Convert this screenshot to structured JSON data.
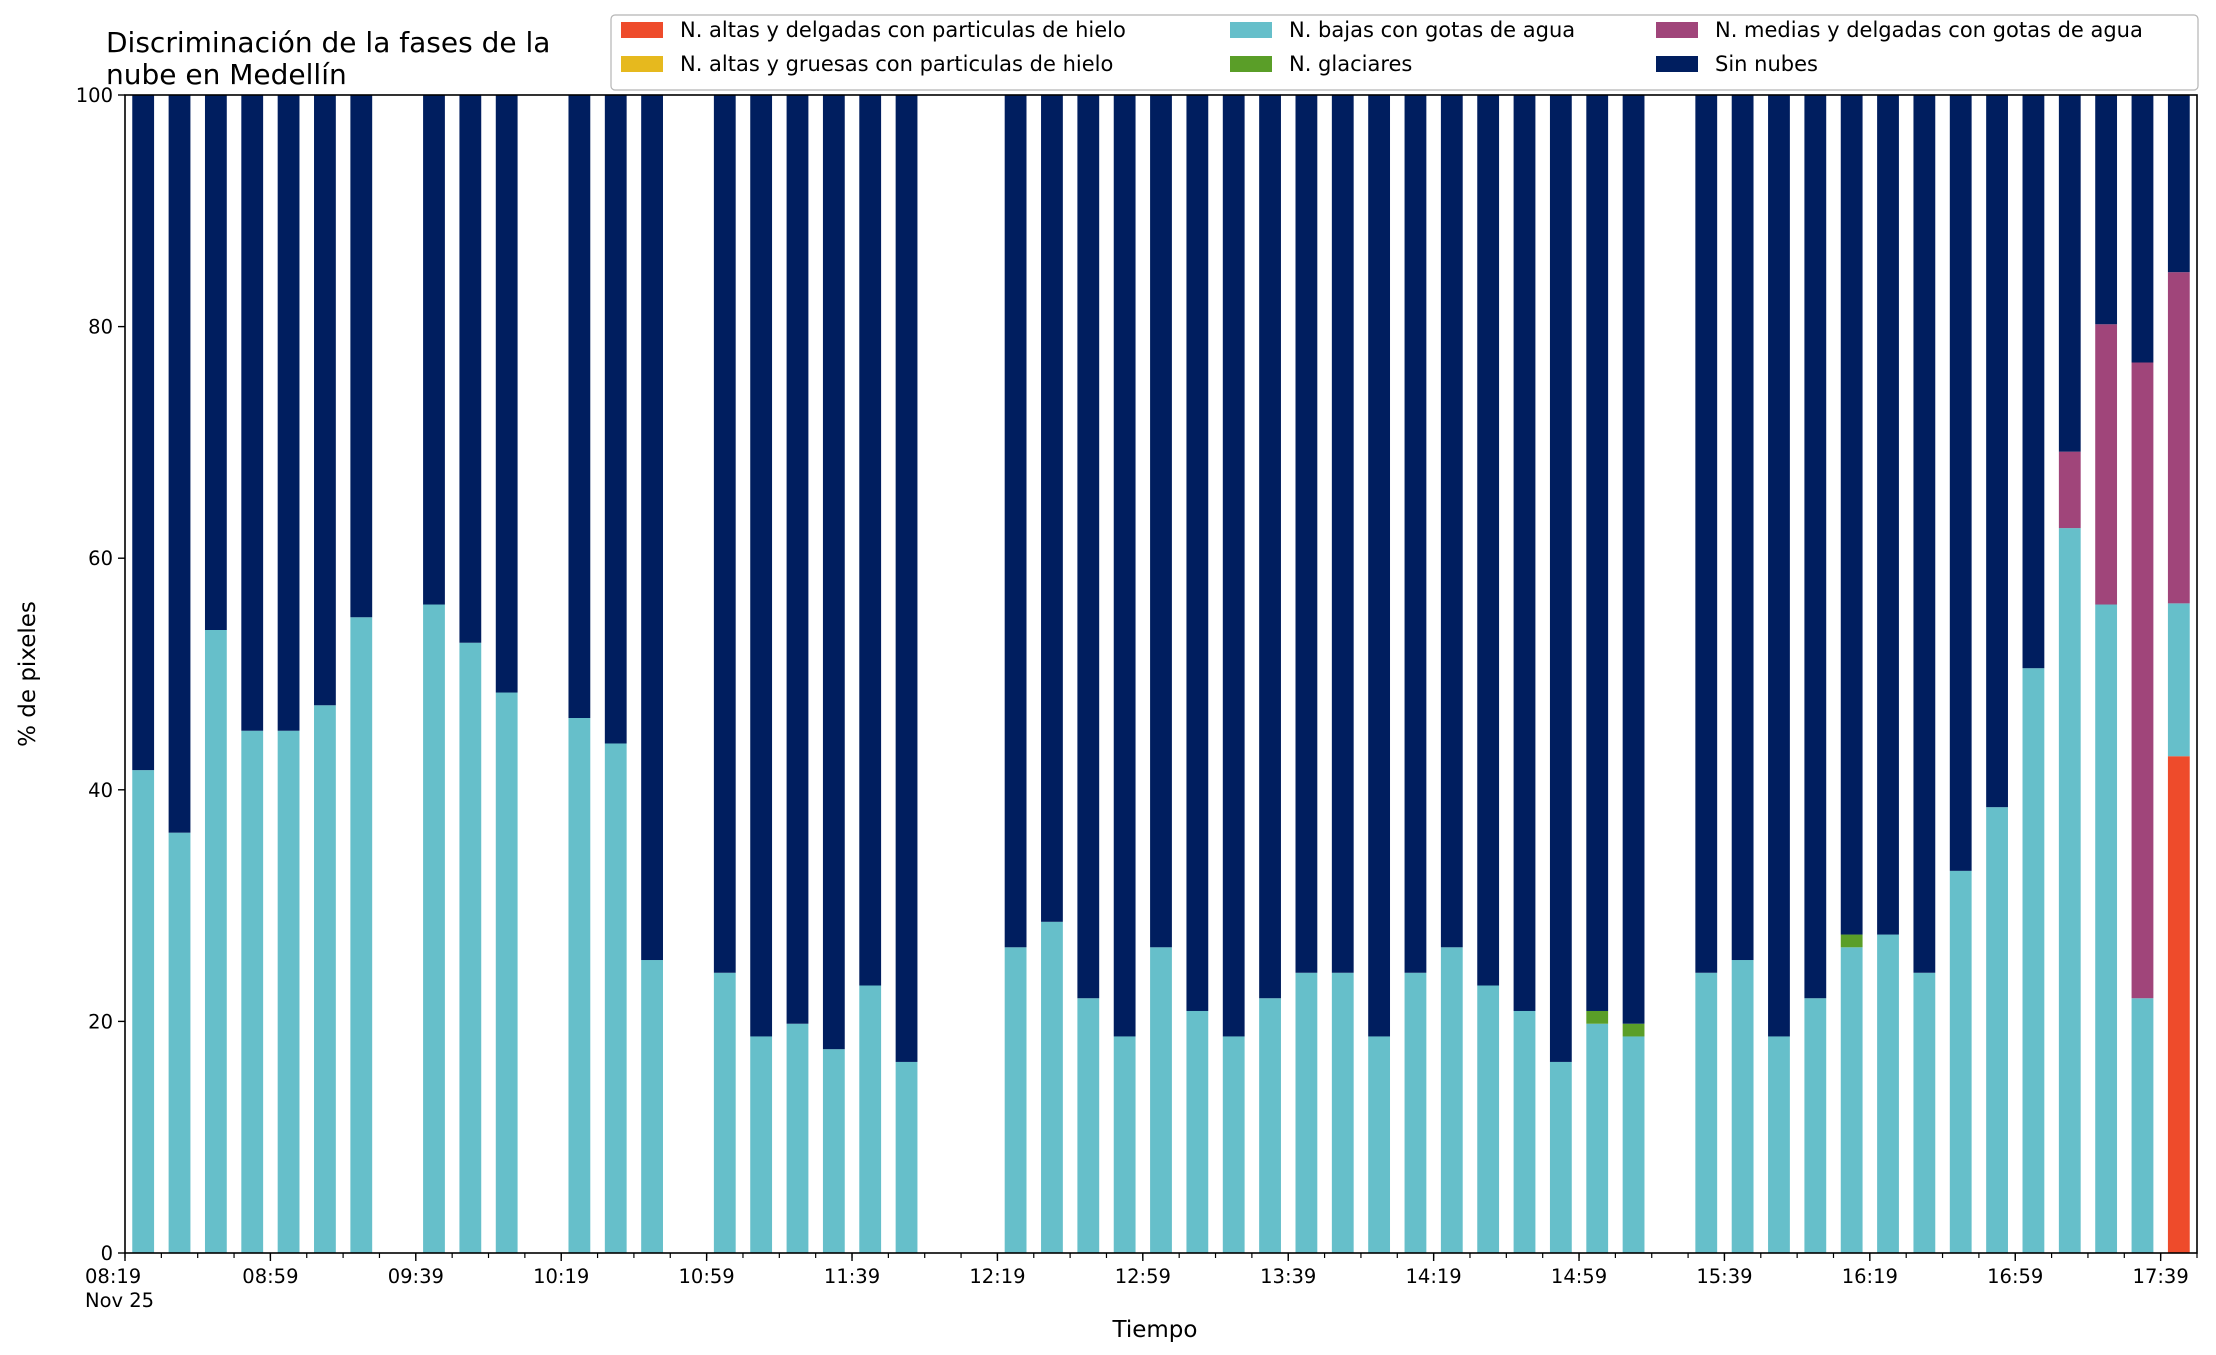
{
  "chart_data": {
    "type": "bar",
    "stacked": true,
    "title_lines": [
      "Discriminación de la fases de la",
      "nube en Medellín"
    ],
    "xlabel": "Tiempo",
    "ylabel": "% de pixeles",
    "ylim": [
      0,
      100
    ],
    "yticks": [
      0,
      20,
      40,
      60,
      80,
      100
    ],
    "x_range": [
      "08:19",
      "17:49"
    ],
    "x_interval_minutes": 10,
    "xtick_labels": [
      {
        "time": "08:19",
        "text": "08:19",
        "sub": "Nov 25"
      },
      {
        "time": "08:59",
        "text": "08:59"
      },
      {
        "time": "09:39",
        "text": "09:39"
      },
      {
        "time": "10:19",
        "text": "10:19"
      },
      {
        "time": "10:59",
        "text": "10:59"
      },
      {
        "time": "11:39",
        "text": "11:39"
      },
      {
        "time": "12:19",
        "text": "12:19"
      },
      {
        "time": "12:59",
        "text": "12:59"
      },
      {
        "time": "13:39",
        "text": "13:39"
      },
      {
        "time": "14:19",
        "text": "14:19"
      },
      {
        "time": "14:59",
        "text": "14:59"
      },
      {
        "time": "15:39",
        "text": "15:39"
      },
      {
        "time": "16:19",
        "text": "16:19"
      },
      {
        "time": "16:59",
        "text": "16:59"
      },
      {
        "time": "17:39",
        "text": "17:39"
      }
    ],
    "legend_position": "top-right",
    "series": [
      {
        "key": "alta_delgada",
        "name": "N. altas y delgadas con particulas de hielo",
        "color": "#ee4b2b"
      },
      {
        "key": "alta_gruesa",
        "name": "N. altas y gruesas con particulas de hielo",
        "color": "#e6b91e"
      },
      {
        "key": "baja",
        "name": "N. bajas con gotas de agua",
        "color": "#66bfca"
      },
      {
        "key": "glaciar",
        "name": "N. glaciares",
        "color": "#5a9e28"
      },
      {
        "key": "media",
        "name": "N. medias y delgadas con gotas de agua",
        "color": "#a0457a"
      },
      {
        "key": "sin",
        "name": "Sin nubes",
        "color": "#001e5f"
      }
    ],
    "legend_order": [
      "alta_delgada",
      "alta_gruesa",
      "baja",
      "glaciar",
      "media",
      "sin"
    ],
    "data": [
      {
        "time": "08:24",
        "alta_delgada": 0,
        "alta_gruesa": 0,
        "baja": 41.7,
        "glaciar": 0,
        "media": 0,
        "sin": 58.3
      },
      {
        "time": "08:34",
        "alta_delgada": 0,
        "alta_gruesa": 0,
        "baja": 36.3,
        "glaciar": 0,
        "media": 0,
        "sin": 63.7
      },
      {
        "time": "08:44",
        "alta_delgada": 0,
        "alta_gruesa": 0,
        "baja": 53.8,
        "glaciar": 0,
        "media": 0,
        "sin": 46.2
      },
      {
        "time": "08:54",
        "alta_delgada": 0,
        "alta_gruesa": 0,
        "baja": 45.1,
        "glaciar": 0,
        "media": 0,
        "sin": 54.9
      },
      {
        "time": "09:04",
        "alta_delgada": 0,
        "alta_gruesa": 0,
        "baja": 45.1,
        "glaciar": 0,
        "media": 0,
        "sin": 54.9
      },
      {
        "time": "09:14",
        "alta_delgada": 0,
        "alta_gruesa": 0,
        "baja": 47.3,
        "glaciar": 0,
        "media": 0,
        "sin": 52.7
      },
      {
        "time": "09:24",
        "alta_delgada": 0,
        "alta_gruesa": 0,
        "baja": 54.9,
        "glaciar": 0,
        "media": 0,
        "sin": 45.1
      },
      {
        "time": "09:44",
        "alta_delgada": 0,
        "alta_gruesa": 0,
        "baja": 56.0,
        "glaciar": 0,
        "media": 0,
        "sin": 44.0
      },
      {
        "time": "09:54",
        "alta_delgada": 0,
        "alta_gruesa": 0,
        "baja": 52.7,
        "glaciar": 0,
        "media": 0,
        "sin": 47.3
      },
      {
        "time": "10:04",
        "alta_delgada": 0,
        "alta_gruesa": 0,
        "baja": 48.4,
        "glaciar": 0,
        "media": 0,
        "sin": 51.6
      },
      {
        "time": "10:24",
        "alta_delgada": 0,
        "alta_gruesa": 0,
        "baja": 46.2,
        "glaciar": 0,
        "media": 0,
        "sin": 53.8
      },
      {
        "time": "10:34",
        "alta_delgada": 0,
        "alta_gruesa": 0,
        "baja": 44.0,
        "glaciar": 0,
        "media": 0,
        "sin": 56.0
      },
      {
        "time": "10:44",
        "alta_delgada": 0,
        "alta_gruesa": 0,
        "baja": 25.3,
        "glaciar": 0,
        "media": 0,
        "sin": 74.7
      },
      {
        "time": "11:04",
        "alta_delgada": 0,
        "alta_gruesa": 0,
        "baja": 24.2,
        "glaciar": 0,
        "media": 0,
        "sin": 75.8
      },
      {
        "time": "11:14",
        "alta_delgada": 0,
        "alta_gruesa": 0,
        "baja": 18.7,
        "glaciar": 0,
        "media": 0,
        "sin": 81.3
      },
      {
        "time": "11:24",
        "alta_delgada": 0,
        "alta_gruesa": 0,
        "baja": 19.8,
        "glaciar": 0,
        "media": 0,
        "sin": 80.2
      },
      {
        "time": "11:34",
        "alta_delgada": 0,
        "alta_gruesa": 0,
        "baja": 17.6,
        "glaciar": 0,
        "media": 0,
        "sin": 82.4
      },
      {
        "time": "11:44",
        "alta_delgada": 0,
        "alta_gruesa": 0,
        "baja": 23.1,
        "glaciar": 0,
        "media": 0,
        "sin": 76.9
      },
      {
        "time": "11:54",
        "alta_delgada": 0,
        "alta_gruesa": 0,
        "baja": 16.5,
        "glaciar": 0,
        "media": 0,
        "sin": 83.5
      },
      {
        "time": "12:24",
        "alta_delgada": 0,
        "alta_gruesa": 0,
        "baja": 26.4,
        "glaciar": 0,
        "media": 0,
        "sin": 73.6
      },
      {
        "time": "12:34",
        "alta_delgada": 0,
        "alta_gruesa": 0,
        "baja": 28.6,
        "glaciar": 0,
        "media": 0,
        "sin": 71.4
      },
      {
        "time": "12:44",
        "alta_delgada": 0,
        "alta_gruesa": 0,
        "baja": 22.0,
        "glaciar": 0,
        "media": 0,
        "sin": 78.0
      },
      {
        "time": "12:54",
        "alta_delgada": 0,
        "alta_gruesa": 0,
        "baja": 18.7,
        "glaciar": 0,
        "media": 0,
        "sin": 81.3
      },
      {
        "time": "13:04",
        "alta_delgada": 0,
        "alta_gruesa": 0,
        "baja": 26.4,
        "glaciar": 0,
        "media": 0,
        "sin": 73.6
      },
      {
        "time": "13:14",
        "alta_delgada": 0,
        "alta_gruesa": 0,
        "baja": 20.9,
        "glaciar": 0,
        "media": 0,
        "sin": 79.1
      },
      {
        "time": "13:24",
        "alta_delgada": 0,
        "alta_gruesa": 0,
        "baja": 18.7,
        "glaciar": 0,
        "media": 0,
        "sin": 81.3
      },
      {
        "time": "13:34",
        "alta_delgada": 0,
        "alta_gruesa": 0,
        "baja": 22.0,
        "glaciar": 0,
        "media": 0,
        "sin": 78.0
      },
      {
        "time": "13:44",
        "alta_delgada": 0,
        "alta_gruesa": 0,
        "baja": 24.2,
        "glaciar": 0,
        "media": 0,
        "sin": 75.8
      },
      {
        "time": "13:54",
        "alta_delgada": 0,
        "alta_gruesa": 0,
        "baja": 24.2,
        "glaciar": 0,
        "media": 0,
        "sin": 75.8
      },
      {
        "time": "14:04",
        "alta_delgada": 0,
        "alta_gruesa": 0,
        "baja": 18.7,
        "glaciar": 0,
        "media": 0,
        "sin": 81.3
      },
      {
        "time": "14:14",
        "alta_delgada": 0,
        "alta_gruesa": 0,
        "baja": 24.2,
        "glaciar": 0,
        "media": 0,
        "sin": 75.8
      },
      {
        "time": "14:24",
        "alta_delgada": 0,
        "alta_gruesa": 0,
        "baja": 26.4,
        "glaciar": 0,
        "media": 0,
        "sin": 73.6
      },
      {
        "time": "14:34",
        "alta_delgada": 0,
        "alta_gruesa": 0,
        "baja": 23.1,
        "glaciar": 0,
        "media": 0,
        "sin": 76.9
      },
      {
        "time": "14:44",
        "alta_delgada": 0,
        "alta_gruesa": 0,
        "baja": 20.9,
        "glaciar": 0,
        "media": 0,
        "sin": 79.1
      },
      {
        "time": "14:54",
        "alta_delgada": 0,
        "alta_gruesa": 0,
        "baja": 16.5,
        "glaciar": 0,
        "media": 0,
        "sin": 83.5
      },
      {
        "time": "15:04",
        "alta_delgada": 0,
        "alta_gruesa": 0,
        "baja": 19.8,
        "glaciar": 1.1,
        "media": 0,
        "sin": 79.1
      },
      {
        "time": "15:14",
        "alta_delgada": 0,
        "alta_gruesa": 0,
        "baja": 18.7,
        "glaciar": 1.1,
        "media": 0,
        "sin": 80.2
      },
      {
        "time": "15:34",
        "alta_delgada": 0,
        "alta_gruesa": 0,
        "baja": 24.2,
        "glaciar": 0,
        "media": 0,
        "sin": 75.8
      },
      {
        "time": "15:44",
        "alta_delgada": 0,
        "alta_gruesa": 0,
        "baja": 25.3,
        "glaciar": 0,
        "media": 0,
        "sin": 74.7
      },
      {
        "time": "15:54",
        "alta_delgada": 0,
        "alta_gruesa": 0,
        "baja": 18.7,
        "glaciar": 0,
        "media": 0,
        "sin": 81.3
      },
      {
        "time": "16:04",
        "alta_delgada": 0,
        "alta_gruesa": 0,
        "baja": 22.0,
        "glaciar": 0,
        "media": 0,
        "sin": 78.0
      },
      {
        "time": "16:14",
        "alta_delgada": 0,
        "alta_gruesa": 0,
        "baja": 26.4,
        "glaciar": 1.1,
        "media": 0,
        "sin": 72.5
      },
      {
        "time": "16:24",
        "alta_delgada": 0,
        "alta_gruesa": 0,
        "baja": 27.5,
        "glaciar": 0,
        "media": 0,
        "sin": 72.5
      },
      {
        "time": "16:34",
        "alta_delgada": 0,
        "alta_gruesa": 0,
        "baja": 24.2,
        "glaciar": 0,
        "media": 0,
        "sin": 75.8
      },
      {
        "time": "16:44",
        "alta_delgada": 0,
        "alta_gruesa": 0,
        "baja": 33.0,
        "glaciar": 0,
        "media": 0,
        "sin": 67.0
      },
      {
        "time": "16:54",
        "alta_delgada": 0,
        "alta_gruesa": 0,
        "baja": 38.5,
        "glaciar": 0,
        "media": 0,
        "sin": 61.5
      },
      {
        "time": "17:04",
        "alta_delgada": 0,
        "alta_gruesa": 0,
        "baja": 50.5,
        "glaciar": 0,
        "media": 0,
        "sin": 49.5
      },
      {
        "time": "17:14",
        "alta_delgada": 0,
        "alta_gruesa": 0,
        "baja": 62.6,
        "glaciar": 0,
        "media": 6.6,
        "sin": 30.8
      },
      {
        "time": "17:24",
        "alta_delgada": 0,
        "alta_gruesa": 0,
        "baja": 56.0,
        "glaciar": 0,
        "media": 24.2,
        "sin": 19.8
      },
      {
        "time": "17:34",
        "alta_delgada": 0,
        "alta_gruesa": 0,
        "baja": 22.0,
        "glaciar": 0,
        "media": 54.9,
        "sin": 23.1
      },
      {
        "time": "17:44",
        "alta_delgada": 42.9,
        "alta_gruesa": 0,
        "baja": 13.2,
        "glaciar": 0,
        "media": 28.6,
        "sin": 15.3
      }
    ]
  }
}
